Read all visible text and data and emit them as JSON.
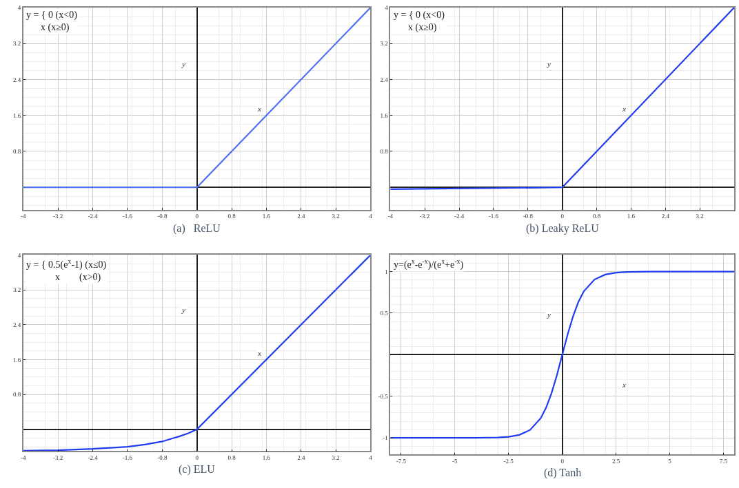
{
  "chart_data": [
    {
      "type": "line",
      "title": "(a)   ReLU",
      "xlabel": "x",
      "ylabel": "y",
      "annotations": [
        "y = { 0 (x<0)\n      x (x≥0)"
      ],
      "xlim": [
        -4,
        4
      ],
      "ylim": [
        -0.5,
        4
      ],
      "xticks": [
        -4,
        -3.2,
        -2.4,
        -1.6,
        -0.8,
        0,
        0.8,
        1.6,
        2.4,
        3.2,
        4
      ],
      "yticks": [
        0.8,
        1.6,
        2.4,
        3.2,
        4
      ],
      "grid": true,
      "series": [
        {
          "color": "#4f6ff5",
          "x": [
            -4,
            0,
            4
          ],
          "values": [
            0,
            0,
            4
          ]
        }
      ]
    },
    {
      "type": "line",
      "title": "(b) Leaky ReLU",
      "xlabel": "x",
      "ylabel": "y",
      "annotations": [
        "y = { 0 (x<0)\n      x (x≥0)"
      ],
      "xlim": [
        -4,
        4
      ],
      "ylim": [
        -0.5,
        4
      ],
      "xticks": [
        -4,
        -3.2,
        -2.4,
        -1.6,
        -0.8,
        0,
        0.8,
        1.6,
        2.4,
        3.2
      ],
      "yticks": [
        0.8,
        1.6,
        2.4,
        3.2,
        4
      ],
      "grid": true,
      "series": [
        {
          "color": "#1f3cf0",
          "x": [
            -4,
            0,
            4
          ],
          "values": [
            -0.04,
            0,
            4
          ]
        }
      ]
    },
    {
      "type": "line",
      "title": "(c) ELU",
      "xlabel": "x",
      "ylabel": "y",
      "annotations": [
        "y = { 0.5(e$^{x}$-1) (x≤0)\n            x        (x>0)"
      ],
      "xlim": [
        -4,
        4
      ],
      "ylim": [
        -0.5,
        4
      ],
      "xticks": [
        -4,
        -3.2,
        -2.4,
        -1.6,
        -0.8,
        0,
        0.8,
        1.6,
        2.4,
        3.2,
        4
      ],
      "yticks": [
        0.8,
        1.6,
        2.4,
        3.2,
        4
      ],
      "grid": true,
      "series": [
        {
          "color": "#1f3cf0",
          "x": [
            -4,
            -3.2,
            -2.4,
            -1.6,
            -1.2,
            -0.8,
            -0.4,
            -0.2,
            0,
            4
          ],
          "values": [
            -0.49,
            -0.48,
            -0.45,
            -0.4,
            -0.35,
            -0.28,
            -0.16,
            -0.09,
            0,
            4
          ]
        }
      ]
    },
    {
      "type": "line",
      "title": "(d) Tanh",
      "xlabel": "x",
      "ylabel": "y",
      "annotations": [
        "y=(e$^{x}$-e$^{-x}$)/(e$^{x}$+e$^{-x}$)"
      ],
      "xlim": [
        -8,
        8
      ],
      "ylim": [
        -1.2,
        1.2
      ],
      "xticks": [
        -7.5,
        -5,
        -2.5,
        0,
        2.5,
        5,
        7.5
      ],
      "yticks": [
        -1,
        -0.5,
        0.5,
        1
      ],
      "grid": true,
      "series": [
        {
          "color": "#1f3cf0",
          "x": [
            -8,
            -4,
            -3,
            -2.5,
            -2,
            -1.5,
            -1,
            -0.75,
            -0.5,
            -0.25,
            0,
            0.25,
            0.5,
            0.75,
            1,
            1.5,
            2,
            2.5,
            3,
            4,
            8
          ],
          "values": [
            -1,
            -1,
            -0.995,
            -0.987,
            -0.964,
            -0.905,
            -0.762,
            -0.635,
            -0.462,
            -0.245,
            0,
            0.245,
            0.462,
            0.635,
            0.762,
            0.905,
            0.964,
            0.987,
            0.995,
            1,
            1
          ]
        }
      ]
    }
  ]
}
